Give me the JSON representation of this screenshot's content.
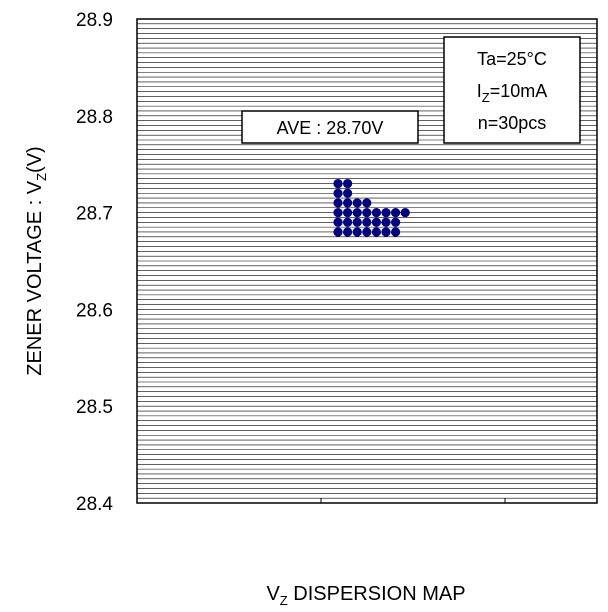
{
  "chart_data": {
    "type": "scatter",
    "title": "",
    "xlabel_main": "V",
    "xlabel_sub": "Z",
    "xlabel_rest": " DISPERSION MAP",
    "ylabel_main": "ZENER VOLTAGE : V",
    "ylabel_sub": "Z",
    "ylabel_rest": "(V)",
    "ylim": [
      28.4,
      28.9
    ],
    "yticks": [
      "28.4",
      "28.5",
      "28.6",
      "28.7",
      "28.8",
      "28.9"
    ],
    "grid": "horizontal minor lines every 0.005",
    "point_color": "#000080",
    "points": [
      {
        "col": 0,
        "y": 28.73
      },
      {
        "col": 1,
        "y": 28.73
      },
      {
        "col": 0,
        "y": 28.72
      },
      {
        "col": 1,
        "y": 28.72
      },
      {
        "col": 0,
        "y": 28.71
      },
      {
        "col": 1,
        "y": 28.71
      },
      {
        "col": 2,
        "y": 28.71
      },
      {
        "col": 3,
        "y": 28.71
      },
      {
        "col": 0,
        "y": 28.7
      },
      {
        "col": 1,
        "y": 28.7
      },
      {
        "col": 2,
        "y": 28.7
      },
      {
        "col": 3,
        "y": 28.7
      },
      {
        "col": 4,
        "y": 28.7
      },
      {
        "col": 5,
        "y": 28.7
      },
      {
        "col": 6,
        "y": 28.7
      },
      {
        "col": 7,
        "y": 28.7
      },
      {
        "col": 0,
        "y": 28.69
      },
      {
        "col": 1,
        "y": 28.69
      },
      {
        "col": 2,
        "y": 28.69
      },
      {
        "col": 3,
        "y": 28.69
      },
      {
        "col": 4,
        "y": 28.69
      },
      {
        "col": 5,
        "y": 28.69
      },
      {
        "col": 6,
        "y": 28.69
      },
      {
        "col": 0,
        "y": 28.68
      },
      {
        "col": 1,
        "y": 28.68
      },
      {
        "col": 2,
        "y": 28.68
      },
      {
        "col": 3,
        "y": 28.68
      },
      {
        "col": 4,
        "y": 28.68
      },
      {
        "col": 5,
        "y": 28.68
      },
      {
        "col": 6,
        "y": 28.68
      }
    ],
    "annotations": {
      "average": "AVE : 28.70V",
      "conditions": {
        "ta": "Ta=25°C",
        "iz_main": "I",
        "iz_sub": "Z",
        "iz_rest": "=10mA",
        "n": "n=30pcs"
      }
    }
  }
}
